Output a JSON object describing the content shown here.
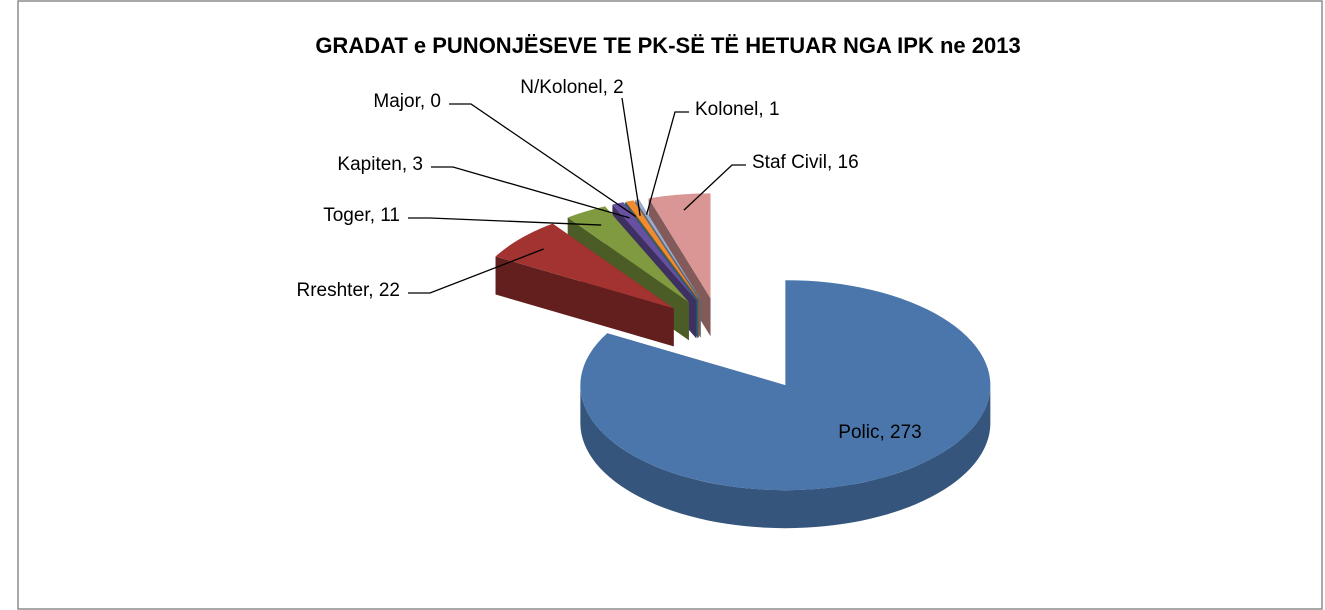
{
  "chart_data": {
    "type": "pie",
    "title": "GRADAT e PUNONJËSEVE TE PK-SË TË HETUAR NGA IPK ne 2013",
    "values": [
      273,
      22,
      11,
      3,
      0,
      2,
      1,
      16
    ],
    "value_labels": [
      "Polic, 273",
      "Rreshter, 22",
      "Toger, 11",
      "Kapiten, 3",
      "Major, 0",
      "N/Kolonel, 2",
      "Kolonel, 1",
      "Staf Civil, 16"
    ],
    "colors": [
      "#4a76ac",
      "#a33330",
      "#7f9a3f",
      "#6750a0",
      "#3fa0c0",
      "#f08c30",
      "#9aaccd",
      "#d99694"
    ]
  }
}
